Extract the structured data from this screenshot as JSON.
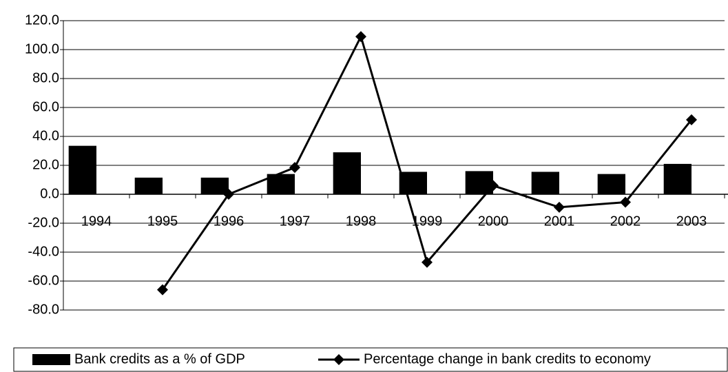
{
  "chart_data": {
    "type": "combo",
    "categories": [
      "1994",
      "1995",
      "1996",
      "1997",
      "1998",
      "1999",
      "2000",
      "2001",
      "2002",
      "2003"
    ],
    "series": [
      {
        "name": "Bank credits as a % of GDP",
        "type": "bar",
        "color": "#000000",
        "values": [
          33.5,
          11.5,
          11.5,
          14,
          29,
          15.5,
          16,
          15.5,
          14,
          21
        ]
      },
      {
        "name": "Percentage change in bank credits to economy",
        "type": "line",
        "color": "#000000",
        "values": [
          null,
          -66,
          0,
          18.5,
          109,
          -47,
          6,
          -9,
          -5.5,
          51.5
        ]
      }
    ],
    "ylim": [
      -80,
      120
    ],
    "yticks": [
      {
        "value": -80,
        "label": "-80.0"
      },
      {
        "value": -60,
        "label": "-60.0"
      },
      {
        "value": -40,
        "label": "-40.0"
      },
      {
        "value": -20,
        "label": "-20.0"
      },
      {
        "value": 0,
        "label": "0.0"
      },
      {
        "value": 20,
        "label": "20.0"
      },
      {
        "value": 40,
        "label": "40.0"
      },
      {
        "value": 60,
        "label": "60.0"
      },
      {
        "value": 80,
        "label": "80.0"
      },
      {
        "value": 100,
        "label": "100.0"
      },
      {
        "value": 120,
        "label": "120.0"
      }
    ],
    "grid": true
  }
}
